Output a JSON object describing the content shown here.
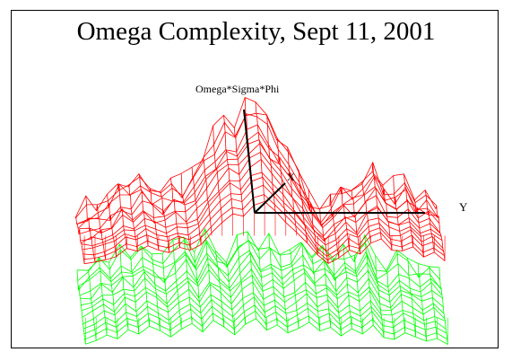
{
  "chart_data": {
    "type": "surface",
    "title": "Omega Complexity, Sept 11, 2001",
    "axes": {
      "z_label": "Omega*Sigma*Phi",
      "x_label": "X",
      "y_label": "Y"
    },
    "grid": false,
    "legend": "none",
    "series": [
      {
        "color": "#ff0000",
        "profile": [
          0.1,
          0.12,
          0.15,
          0.2,
          0.32,
          0.28,
          0.36,
          0.3,
          0.26,
          0.34,
          0.3,
          0.38,
          0.55,
          0.7,
          0.82,
          0.78,
          0.95,
          1.0,
          0.86,
          0.7,
          0.56,
          0.4,
          0.22,
          0.1,
          0.18,
          0.3,
          0.24,
          0.4,
          0.46,
          0.3,
          0.28,
          0.34,
          0.2,
          0.26,
          0.14
        ]
      },
      {
        "color": "#00ff00",
        "profile": [
          0.3,
          0.38,
          0.5,
          0.42,
          0.6,
          0.52,
          0.68,
          0.58,
          0.46,
          0.62,
          0.74,
          0.56,
          0.8,
          0.66,
          0.5,
          0.72,
          0.84,
          0.6,
          0.7,
          0.54,
          0.64,
          0.76,
          0.58,
          0.66,
          0.48,
          0.62,
          0.52,
          0.7,
          0.44,
          0.4,
          0.54,
          0.46,
          0.36,
          0.42,
          0.3
        ]
      }
    ]
  }
}
